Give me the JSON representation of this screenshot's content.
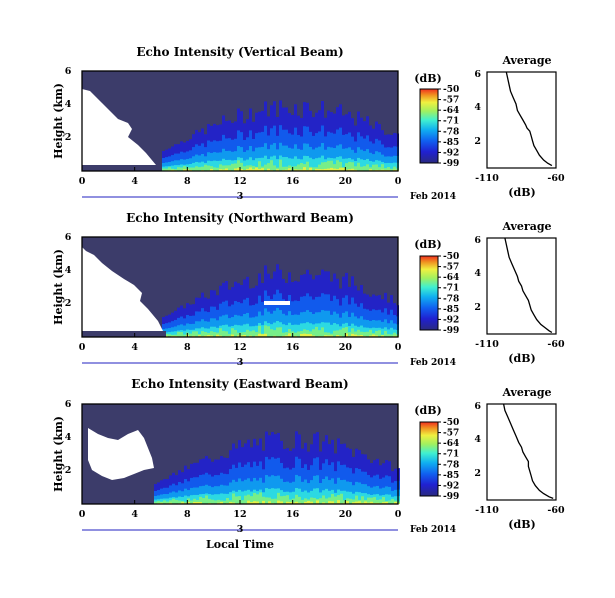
{
  "chart_data": [
    {
      "type": "heatmap",
      "title": "Echo Intensity (Vertical Beam)",
      "ylabel": "Height (km)",
      "xlim": [
        0,
        24
      ],
      "ylim": [
        0,
        6
      ],
      "x_ticks": [
        "0",
        "4",
        "8",
        "12",
        "16",
        "20",
        "0"
      ],
      "y_ticks": [
        "2",
        "4",
        "6"
      ],
      "date_labels": [
        "3",
        "Feb 2014"
      ],
      "colorbar": {
        "unit": "(dB)",
        "ticks": [
          "-50",
          "-57",
          "-64",
          "-71",
          "-78",
          "-85",
          "-92",
          "-99"
        ],
        "range": [
          -99,
          -50
        ]
      },
      "profile": {
        "type": "line",
        "title": "Average",
        "xlabel": "(dB)",
        "x_ticks": [
          "-110",
          "-60"
        ],
        "y_ticks": [
          "2",
          "4",
          "6"
        ],
        "xlim": [
          -110,
          -60
        ],
        "ylim": [
          0,
          6
        ],
        "points": [
          [
            -96,
            6.0
          ],
          [
            -95,
            5.6
          ],
          [
            -94,
            5.2
          ],
          [
            -93,
            4.8
          ],
          [
            -91,
            4.4
          ],
          [
            -89,
            4.0
          ],
          [
            -88,
            3.6
          ],
          [
            -86,
            3.3
          ],
          [
            -84,
            3.0
          ],
          [
            -82,
            2.7
          ],
          [
            -81,
            2.5
          ],
          [
            -79,
            2.3
          ],
          [
            -78,
            2.0
          ],
          [
            -77,
            1.7
          ],
          [
            -76,
            1.4
          ],
          [
            -74,
            1.1
          ],
          [
            -72,
            0.8
          ],
          [
            -69,
            0.5
          ],
          [
            -66,
            0.3
          ],
          [
            -63,
            0.15
          ]
        ]
      }
    },
    {
      "type": "heatmap",
      "title": "Echo Intensity (Northward Beam)",
      "ylabel": "Height (km)",
      "xlim": [
        0,
        24
      ],
      "ylim": [
        0,
        6
      ],
      "x_ticks": [
        "0",
        "4",
        "8",
        "12",
        "16",
        "20",
        "0"
      ],
      "y_ticks": [
        "2",
        "4",
        "6"
      ],
      "date_labels": [
        "3",
        "Feb 2014"
      ],
      "colorbar": {
        "unit": "(dB)",
        "ticks": [
          "-50",
          "-57",
          "-64",
          "-71",
          "-78",
          "-85",
          "-92",
          "-99"
        ],
        "range": [
          -99,
          -50
        ]
      },
      "profile": {
        "type": "line",
        "title": "Average",
        "xlabel": "(dB)",
        "x_ticks": [
          "-110",
          "-60"
        ],
        "y_ticks": [
          "2",
          "4",
          "6"
        ],
        "xlim": [
          -110,
          -60
        ],
        "ylim": [
          0,
          6
        ],
        "points": [
          [
            -97,
            6.0
          ],
          [
            -96,
            5.6
          ],
          [
            -95,
            5.2
          ],
          [
            -94,
            4.8
          ],
          [
            -92,
            4.4
          ],
          [
            -90,
            4.0
          ],
          [
            -88,
            3.6
          ],
          [
            -87,
            3.3
          ],
          [
            -85,
            3.0
          ],
          [
            -84,
            2.7
          ],
          [
            -82,
            2.4
          ],
          [
            -80,
            2.1
          ],
          [
            -79,
            1.8
          ],
          [
            -78,
            1.5
          ],
          [
            -76,
            1.2
          ],
          [
            -74,
            0.9
          ],
          [
            -71,
            0.6
          ],
          [
            -68,
            0.4
          ],
          [
            -65,
            0.2
          ],
          [
            -63,
            0.1
          ]
        ]
      }
    },
    {
      "type": "heatmap",
      "title": "Echo Intensity (Eastward Beam)",
      "ylabel": "Height (km)",
      "xlabel": "Local Time",
      "xlim": [
        0,
        24
      ],
      "ylim": [
        0,
        6
      ],
      "x_ticks": [
        "0",
        "4",
        "8",
        "12",
        "16",
        "20",
        "0"
      ],
      "y_ticks": [
        "2",
        "4",
        "6"
      ],
      "date_labels": [
        "3",
        "Feb 2014"
      ],
      "colorbar": {
        "unit": "(dB)",
        "ticks": [
          "-50",
          "-57",
          "-64",
          "-71",
          "-78",
          "-85",
          "-92",
          "-99"
        ],
        "range": [
          -99,
          -50
        ]
      },
      "profile": {
        "type": "line",
        "title": "Average",
        "xlabel": "(dB)",
        "x_ticks": [
          "-110",
          "-60"
        ],
        "y_ticks": [
          "2",
          "4",
          "6"
        ],
        "xlim": [
          -110,
          -60
        ],
        "ylim": [
          0,
          6
        ],
        "points": [
          [
            -98,
            6.0
          ],
          [
            -97,
            5.6
          ],
          [
            -95,
            5.2
          ],
          [
            -93,
            4.8
          ],
          [
            -91,
            4.4
          ],
          [
            -89,
            4.0
          ],
          [
            -87,
            3.6
          ],
          [
            -85,
            3.3
          ],
          [
            -84,
            3.0
          ],
          [
            -82,
            2.7
          ],
          [
            -80,
            2.4
          ],
          [
            -80,
            2.1
          ],
          [
            -79,
            1.8
          ],
          [
            -78,
            1.5
          ],
          [
            -77,
            1.2
          ],
          [
            -75,
            0.9
          ],
          [
            -72,
            0.6
          ],
          [
            -69,
            0.4
          ],
          [
            -65,
            0.2
          ],
          [
            -62,
            0.1
          ]
        ]
      }
    }
  ],
  "colors": {
    "background": "#3c3c6a",
    "scale": [
      "#3a3a9a",
      "#2020d0",
      "#1060f0",
      "#10a0f0",
      "#30e0e0",
      "#80f080",
      "#f0f040",
      "#f09020",
      "#f03020"
    ]
  }
}
